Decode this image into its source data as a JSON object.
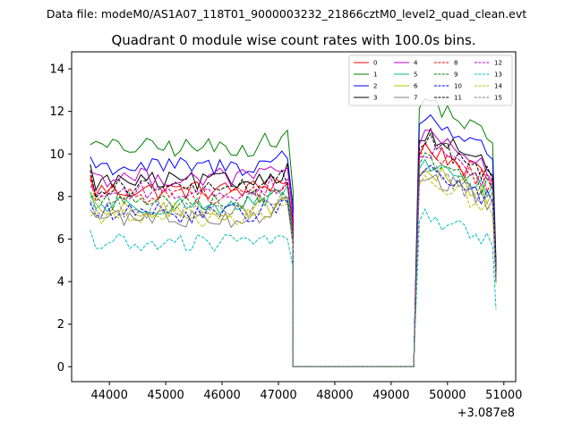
{
  "chart_data": {
    "type": "line",
    "supertitle": "Data file: modeM0/AS1A07_118T01_9000003232_21866cztM0_level2_quad_clean.evt",
    "title": "Quadrant 0 module wise count rates with 100.0s bins.",
    "xlabel": "",
    "ylabel": "",
    "x_offset_label": "+3.087e8",
    "xlim": [
      43330,
      51210
    ],
    "ylim": [
      -0.7,
      14.8
    ],
    "x_ticks": [
      44000,
      45000,
      46000,
      47000,
      48000,
      49000,
      50000,
      51000
    ],
    "x_tick_labels": [
      "44000",
      "45000",
      "46000",
      "47000",
      "48000",
      "49000",
      "50000",
      "51000"
    ],
    "y_ticks": [
      0,
      2,
      4,
      6,
      8,
      10,
      12,
      14
    ],
    "y_tick_labels": [
      "0",
      "2",
      "4",
      "6",
      "8",
      "10",
      "12",
      "14"
    ],
    "gap_level": 0.0,
    "segment1": {
      "x_start": 43660,
      "step": 100,
      "n": 37,
      "drop_x": 47260
    },
    "gap": {
      "x_start": 47260,
      "x_end": 49400
    },
    "segment2": {
      "x_start": 49400,
      "rise_x": 49500,
      "step": 100,
      "n": 14,
      "drop_x": 50860
    },
    "legend_position": "top-right",
    "series": [
      {
        "name": "0",
        "color": "#ff0000",
        "dash": "solid",
        "level1": 8.3,
        "level2": 10.5,
        "end": 4.5
      },
      {
        "name": "1",
        "color": "#008000",
        "dash": "solid",
        "level1": 10.3,
        "level2": 12.8,
        "end": 5.0
      },
      {
        "name": "2",
        "color": "#0000ff",
        "dash": "solid",
        "level1": 9.4,
        "level2": 12.0,
        "end": 4.8
      },
      {
        "name": "3",
        "color": "#000000",
        "dash": "solid",
        "level1": 8.7,
        "level2": 11.2,
        "end": 4.6
      },
      {
        "name": "4",
        "color": "#bf00bf",
        "dash": "solid",
        "level1": 8.9,
        "level2": 11.0,
        "end": 4.4
      },
      {
        "name": "5",
        "color": "#00bf7f",
        "dash": "solid",
        "level1": 7.6,
        "level2": 9.8,
        "end": 4.2
      },
      {
        "name": "6",
        "color": "#bfbf00",
        "dash": "solid",
        "level1": 7.3,
        "level2": 9.5,
        "end": 4.0
      },
      {
        "name": "7",
        "color": "#808080",
        "dash": "solid",
        "level1": 7.0,
        "level2": 9.2,
        "end": 4.0
      },
      {
        "name": "8",
        "color": "#ff0000",
        "dash": "dashed",
        "level1": 8.1,
        "level2": 10.3,
        "end": 4.3
      },
      {
        "name": "9",
        "color": "#008000",
        "dash": "dashed",
        "level1": 7.8,
        "level2": 10.0,
        "end": 4.2
      },
      {
        "name": "10",
        "color": "#0000ff",
        "dash": "dashed",
        "level1": 7.2,
        "level2": 9.4,
        "end": 4.0
      },
      {
        "name": "11",
        "color": "#000000",
        "dash": "dashed",
        "level1": 8.4,
        "level2": 10.8,
        "end": 4.5
      },
      {
        "name": "12",
        "color": "#bf00bf",
        "dash": "dashed",
        "level1": 8.2,
        "level2": 10.4,
        "end": 4.3
      },
      {
        "name": "13",
        "color": "#00bfbf",
        "dash": "dashed",
        "level1": 5.8,
        "level2": 7.2,
        "end": 2.7
      },
      {
        "name": "14",
        "color": "#bfbf00",
        "dash": "dashed",
        "level1": 7.0,
        "level2": 9.0,
        "end": 3.9
      },
      {
        "name": "15",
        "color": "#808080",
        "dash": "dashed",
        "level1": 7.4,
        "level2": 9.4,
        "end": 4.0
      }
    ]
  }
}
